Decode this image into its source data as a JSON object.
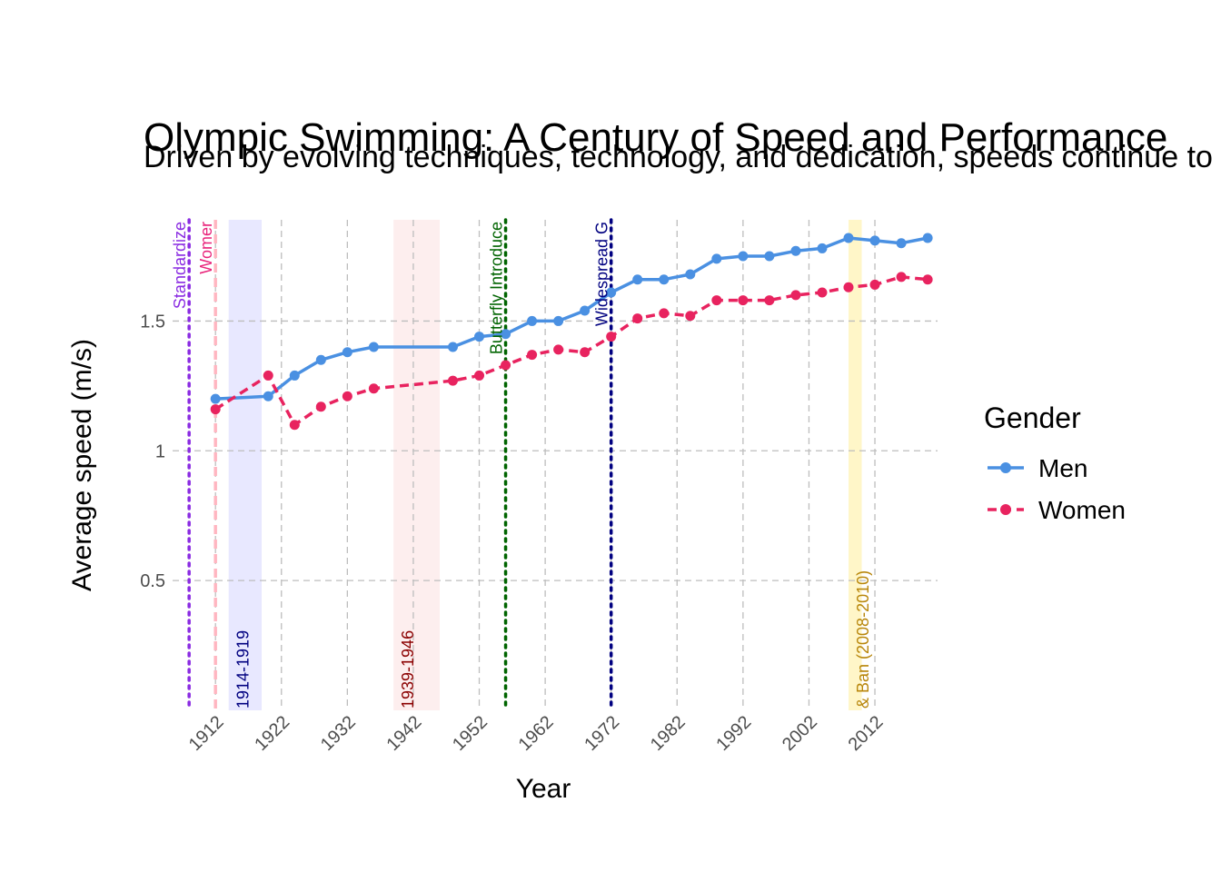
{
  "chart_data": {
    "type": "line",
    "title": "Olympic Swimming: A Century of Speed and Performance",
    "subtitle": "Driven by evolving techniques, technology, and dedication, speeds continue to rise",
    "xlabel": "Year",
    "ylabel": "Average speed (m/s)",
    "xlim": [
      1905.5,
      2021.5
    ],
    "ylim": [
      0,
      1.89
    ],
    "x_ticks": [
      1912,
      1922,
      1932,
      1942,
      1952,
      1962,
      1972,
      1982,
      1992,
      2002,
      2012
    ],
    "y_ticks": [
      0.5,
      1.0,
      1.5
    ],
    "grid": true,
    "legend": {
      "title": "Gender",
      "position": "right"
    },
    "series": [
      {
        "name": "Men",
        "color": "#4a90e2",
        "dash": "solid",
        "x": [
          1912,
          1920,
          1924,
          1928,
          1932,
          1936,
          1948,
          1952,
          1956,
          1960,
          1964,
          1968,
          1972,
          1976,
          1980,
          1984,
          1988,
          1992,
          1996,
          2000,
          2004,
          2008,
          2012,
          2016,
          2020
        ],
        "values": [
          1.2,
          1.21,
          1.29,
          1.35,
          1.38,
          1.4,
          1.4,
          1.44,
          1.45,
          1.5,
          1.5,
          1.54,
          1.61,
          1.66,
          1.66,
          1.68,
          1.74,
          1.75,
          1.75,
          1.77,
          1.78,
          1.82,
          1.81,
          1.8,
          1.82
        ]
      },
      {
        "name": "Women",
        "color": "#e8235f",
        "dash": "dashed",
        "x": [
          1912,
          1920,
          1924,
          1928,
          1932,
          1936,
          1948,
          1952,
          1956,
          1960,
          1964,
          1968,
          1972,
          1976,
          1980,
          1984,
          1988,
          1992,
          1996,
          2000,
          2004,
          2008,
          2012,
          2016,
          2020
        ],
        "values": [
          1.16,
          1.29,
          1.1,
          1.17,
          1.21,
          1.24,
          1.27,
          1.29,
          1.33,
          1.37,
          1.39,
          1.38,
          1.44,
          1.51,
          1.53,
          1.52,
          1.58,
          1.58,
          1.58,
          1.6,
          1.61,
          1.63,
          1.64,
          1.67,
          1.66
        ]
      }
    ],
    "shaded_periods": [
      {
        "start": 1914,
        "end": 1919,
        "label": "1914-1919",
        "fill": "#e8e8ff",
        "text_color": "#000080"
      },
      {
        "start": 1939,
        "end": 1946,
        "label": "1939-1946",
        "fill": "#fdeeee",
        "text_color": "#8b0000"
      },
      {
        "start": 2008,
        "end": 2010,
        "label": "& Ban (2008-2010)",
        "fill": "#fff6c8",
        "text_color": "#b8860b"
      }
    ],
    "event_lines": [
      {
        "year": 1908,
        "label": "Standardize",
        "color": "#8a2be2",
        "dash": "dotted"
      },
      {
        "year": 1912,
        "label": "Womer",
        "color": "#ffb6c1",
        "text_color": "#e8237a",
        "dash": "dashed"
      },
      {
        "year": 1956,
        "label": "Butterfly Introduce",
        "color": "#006400",
        "dash": "dotted"
      },
      {
        "year": 1972,
        "label": "Widespread G",
        "color": "#000080",
        "dash": "dotted"
      }
    ]
  }
}
